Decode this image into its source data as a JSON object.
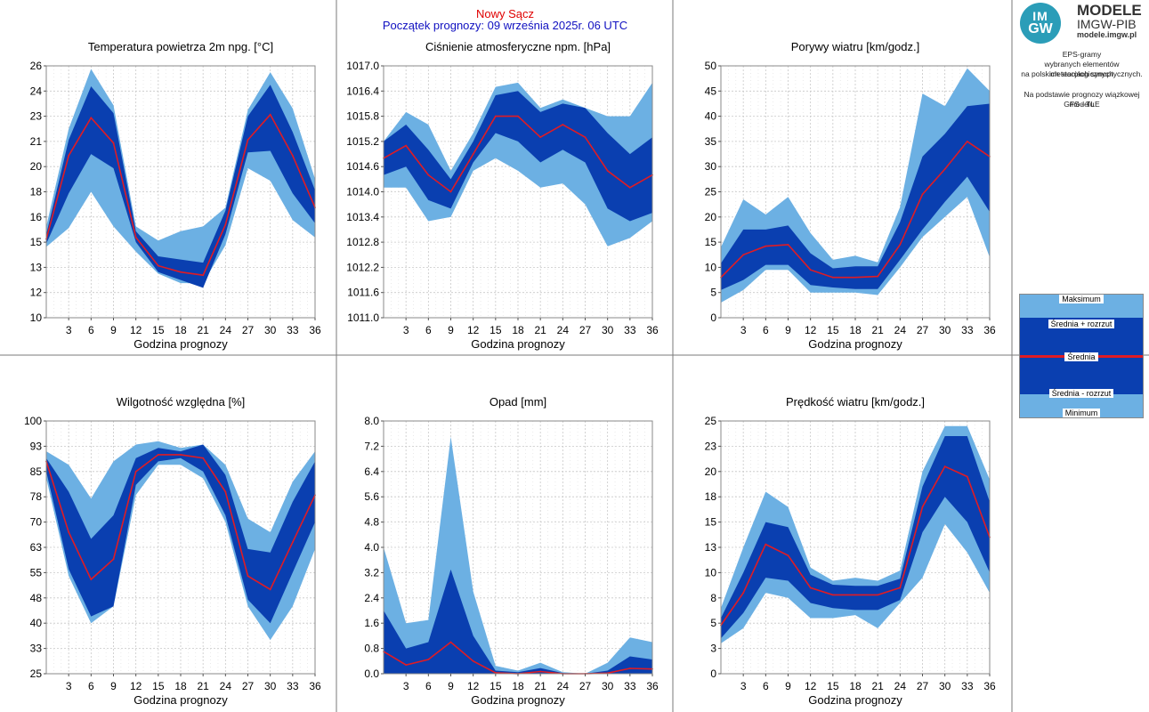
{
  "header": {
    "city": "Nowy Sącz",
    "forecast_start": "Początek prognozy: 09 września 2025r. 06 UTC"
  },
  "logo": {
    "mark_top": "IM",
    "mark_bottom": "GW",
    "brand_line1": "MODELE",
    "brand_line2": "IMGW-PIB",
    "brand_url": "modele.imgw.pl"
  },
  "info": {
    "line1": "EPS-gramy",
    "line2": "wybranych elementów meteorologicznych",
    "line3": "na polskich stacjach  synoptycznych.",
    "line4": "Na podstawie prognozy wiązkowej modelu",
    "line5": "GFS - TLE"
  },
  "legend": {
    "max": "Maksimum",
    "mean_plus": "Średnia + rozrzut",
    "mean": "Średnia",
    "mean_minus": "Średnia - rozrzut",
    "min": "Minimum"
  },
  "colors": {
    "light_band": "#6cb0e3",
    "dark_band": "#0a3fb0",
    "mean_line": "#e01b24",
    "grid": "#c8c8c8",
    "frame": "#7a7a7a"
  },
  "x_label": "Godzina prognozy",
  "chart_data": [
    {
      "type": "area",
      "title": "Temperatura powietrza 2m npg. [°C]",
      "xlabel": "Godzina prognozy",
      "x": [
        0,
        3,
        6,
        9,
        12,
        15,
        18,
        21,
        24,
        27,
        30,
        33,
        36
      ],
      "xticks": [
        "3",
        "6",
        "9",
        "12",
        "15",
        "18",
        "21",
        "24",
        "27",
        "30",
        "33",
        "36"
      ],
      "ylim": [
        10,
        26
      ],
      "yticks": [
        "10",
        "12",
        "13",
        "15",
        "16",
        "18",
        "20",
        "21",
        "23",
        "24",
        "26"
      ],
      "max": [
        15.8,
        22.0,
        25.8,
        23.5,
        15.8,
        14.9,
        15.5,
        15.8,
        17.0,
        23.2,
        25.6,
        23.3,
        18.8
      ],
      "mean_plus": [
        15.3,
        21.3,
        24.7,
        23.0,
        15.5,
        13.9,
        13.7,
        13.5,
        16.8,
        22.8,
        24.8,
        21.8,
        18.1
      ],
      "mean": [
        15.0,
        20.3,
        22.7,
        21.1,
        15.1,
        13.3,
        12.9,
        12.7,
        15.9,
        21.3,
        22.9,
        20.3,
        17.0
      ],
      "mean_minus": [
        14.7,
        17.9,
        20.4,
        19.5,
        14.8,
        12.9,
        12.4,
        11.9,
        15.3,
        20.5,
        20.6,
        17.9,
        16.0
      ],
      "min": [
        14.5,
        15.7,
        18.0,
        15.8,
        14.2,
        12.8,
        12.2,
        12.2,
        14.6,
        19.5,
        18.7,
        16.2,
        15.1
      ]
    },
    {
      "type": "area",
      "title": "Ciśnienie atmosferyczne npm. [hPa]",
      "xlabel": "Godzina prognozy",
      "x": [
        0,
        3,
        6,
        9,
        12,
        15,
        18,
        21,
        24,
        27,
        30,
        33,
        36
      ],
      "xticks": [
        "3",
        "6",
        "9",
        "12",
        "15",
        "18",
        "21",
        "24",
        "27",
        "30",
        "33",
        "36"
      ],
      "ylim": [
        1011.0,
        1017.0
      ],
      "yticks": [
        "1011.0",
        "1011.6",
        "1012.2",
        "1012.8",
        "1013.4",
        "1014.0",
        "1014.6",
        "1015.2",
        "1015.8",
        "1016.4",
        "1017.0"
      ],
      "max": [
        1015.2,
        1015.9,
        1015.6,
        1014.5,
        1015.4,
        1016.5,
        1016.6,
        1016.0,
        1016.2,
        1016.0,
        1015.8,
        1015.8,
        1016.6
      ],
      "mean_plus": [
        1015.2,
        1015.6,
        1015.0,
        1014.3,
        1015.2,
        1016.3,
        1016.4,
        1015.9,
        1016.1,
        1016.0,
        1015.4,
        1014.9,
        1015.3
      ],
      "mean": [
        1014.8,
        1015.1,
        1014.4,
        1014.0,
        1014.9,
        1015.8,
        1015.8,
        1015.3,
        1015.6,
        1015.3,
        1014.5,
        1014.1,
        1014.4
      ],
      "mean_minus": [
        1014.4,
        1014.6,
        1013.8,
        1013.6,
        1014.7,
        1015.4,
        1015.2,
        1014.7,
        1015.0,
        1014.7,
        1013.6,
        1013.3,
        1013.5
      ],
      "min": [
        1014.1,
        1014.1,
        1013.3,
        1013.4,
        1014.5,
        1014.8,
        1014.5,
        1014.1,
        1014.2,
        1013.7,
        1012.7,
        1012.9,
        1013.3
      ]
    },
    {
      "type": "area",
      "title": "Porywy wiatru [km/godz.]",
      "xlabel": "Godzina prognozy",
      "x": [
        0,
        3,
        6,
        9,
        12,
        15,
        18,
        21,
        24,
        27,
        30,
        33,
        36
      ],
      "xticks": [
        "3",
        "6",
        "9",
        "12",
        "15",
        "18",
        "21",
        "24",
        "27",
        "30",
        "33",
        "36"
      ],
      "ylim": [
        0,
        50
      ],
      "yticks": [
        "0",
        "5",
        "10",
        "15",
        "20",
        "25",
        "30",
        "35",
        "40",
        "45",
        "50"
      ],
      "max": [
        14.0,
        23.5,
        20.5,
        24.0,
        16.8,
        11.5,
        12.3,
        11.0,
        22.0,
        44.5,
        42.0,
        49.5,
        45.0
      ],
      "mean_plus": [
        10.8,
        17.5,
        17.5,
        18.3,
        12.8,
        9.8,
        10.2,
        10.2,
        19.0,
        32.0,
        36.5,
        42.0,
        42.5
      ],
      "mean": [
        8.0,
        12.5,
        14.2,
        14.5,
        9.5,
        8.0,
        8.0,
        8.2,
        14.5,
        24.5,
        29.5,
        35.0,
        32.0
      ],
      "mean_minus": [
        5.5,
        7.5,
        10.5,
        10.5,
        6.5,
        6.0,
        5.7,
        5.7,
        11.5,
        17.5,
        23.0,
        28.0,
        21.0
      ],
      "min": [
        3.0,
        5.5,
        9.5,
        9.5,
        5.0,
        5.0,
        5.0,
        4.5,
        10.0,
        16.0,
        20.0,
        24.0,
        12.0
      ]
    },
    {
      "type": "area",
      "title": "Wilgotność względna [%]",
      "xlabel": "Godzina prognozy",
      "x": [
        0,
        3,
        6,
        9,
        12,
        15,
        18,
        21,
        24,
        27,
        30,
        33,
        36
      ],
      "xticks": [
        "3",
        "6",
        "9",
        "12",
        "15",
        "18",
        "21",
        "24",
        "27",
        "30",
        "33",
        "36"
      ],
      "ylim": [
        25,
        100
      ],
      "yticks": [
        "25",
        "33",
        "40",
        "48",
        "55",
        "63",
        "70",
        "78",
        "85",
        "93",
        "100"
      ],
      "max": [
        91.0,
        87.0,
        77.0,
        88.0,
        93.0,
        94.0,
        92.0,
        93.0,
        87.0,
        71.0,
        67.0,
        82.0,
        91.0
      ],
      "mean_plus": [
        89.0,
        79.0,
        65.0,
        72.0,
        89.0,
        92.0,
        91.0,
        93.0,
        84.0,
        62.0,
        61.0,
        76.0,
        88.0
      ],
      "mean": [
        88.0,
        67.0,
        53.0,
        59.0,
        85.0,
        90.0,
        90.0,
        89.0,
        79.0,
        54.0,
        50.0,
        64.0,
        78.0
      ],
      "mean_minus": [
        85.0,
        56.0,
        42.0,
        45.0,
        81.0,
        88.0,
        89.0,
        85.0,
        72.0,
        47.0,
        40.0,
        55.0,
        70.0
      ],
      "min": [
        83.0,
        54.0,
        40.0,
        45.0,
        78.0,
        87.0,
        87.0,
        83.0,
        70.0,
        45.0,
        35.0,
        45.0,
        62.0
      ]
    },
    {
      "type": "area",
      "title": "Opad [mm]",
      "xlabel": "Godzina prognozy",
      "x": [
        0,
        3,
        6,
        9,
        12,
        15,
        18,
        21,
        24,
        27,
        30,
        33,
        36
      ],
      "xticks": [
        "3",
        "6",
        "9",
        "12",
        "15",
        "18",
        "21",
        "24",
        "27",
        "30",
        "33",
        "36"
      ],
      "ylim": [
        0,
        8
      ],
      "yticks": [
        "0.0",
        "0.8",
        "1.6",
        "2.4",
        "3.2",
        "4.0",
        "4.8",
        "5.6",
        "6.4",
        "7.2",
        "8.0"
      ],
      "max": [
        4.0,
        1.6,
        1.7,
        7.5,
        2.6,
        0.25,
        0.1,
        0.35,
        0.05,
        0.0,
        0.35,
        1.15,
        1.0
      ],
      "mean_plus": [
        2.0,
        0.8,
        1.0,
        3.3,
        1.2,
        0.1,
        0.05,
        0.18,
        0.02,
        0.0,
        0.1,
        0.55,
        0.45
      ],
      "mean": [
        0.7,
        0.28,
        0.45,
        1.0,
        0.4,
        0.03,
        0.0,
        0.07,
        0.0,
        0.0,
        0.02,
        0.17,
        0.15
      ],
      "mean_minus": [
        0.0,
        0.0,
        0.0,
        0.0,
        0.0,
        0.0,
        0.0,
        0.0,
        0.0,
        0.0,
        0.0,
        0.0,
        0.0
      ],
      "min": [
        0.0,
        0.0,
        0.0,
        0.0,
        0.0,
        0.0,
        0.0,
        0.0,
        0.0,
        0.0,
        0.0,
        0.0,
        0.0
      ]
    },
    {
      "type": "area",
      "title": "Prędkość wiatru [km/godz.]",
      "xlabel": "Godzina prognozy",
      "x": [
        0,
        3,
        6,
        9,
        12,
        15,
        18,
        21,
        24,
        27,
        30,
        33,
        36
      ],
      "xticks": [
        "3",
        "6",
        "9",
        "12",
        "15",
        "18",
        "21",
        "24",
        "27",
        "30",
        "33",
        "36"
      ],
      "ylim": [
        0,
        25
      ],
      "yticks": [
        "0",
        "3",
        "5",
        "8",
        "10",
        "13",
        "15",
        "18",
        "20",
        "23",
        "25"
      ],
      "max": [
        6.5,
        12.5,
        18.0,
        16.5,
        10.5,
        9.2,
        9.5,
        9.2,
        10.2,
        20.0,
        24.5,
        24.5,
        19.2
      ],
      "mean_plus": [
        5.5,
        10.0,
        15.0,
        14.5,
        9.8,
        8.8,
        8.7,
        8.7,
        9.4,
        18.5,
        23.5,
        23.5,
        17.0
      ],
      "mean": [
        4.8,
        8.0,
        12.8,
        11.7,
        8.5,
        7.8,
        7.8,
        7.8,
        8.5,
        16.5,
        20.5,
        19.5,
        13.5
      ],
      "mean_minus": [
        3.5,
        6.0,
        9.5,
        9.2,
        7.0,
        6.5,
        6.3,
        6.3,
        7.3,
        14.0,
        17.5,
        15.0,
        10.0
      ],
      "min": [
        3.0,
        4.5,
        8.0,
        7.5,
        5.5,
        5.5,
        5.8,
        4.5,
        7.0,
        9.5,
        14.8,
        12.0,
        8.0
      ]
    }
  ]
}
